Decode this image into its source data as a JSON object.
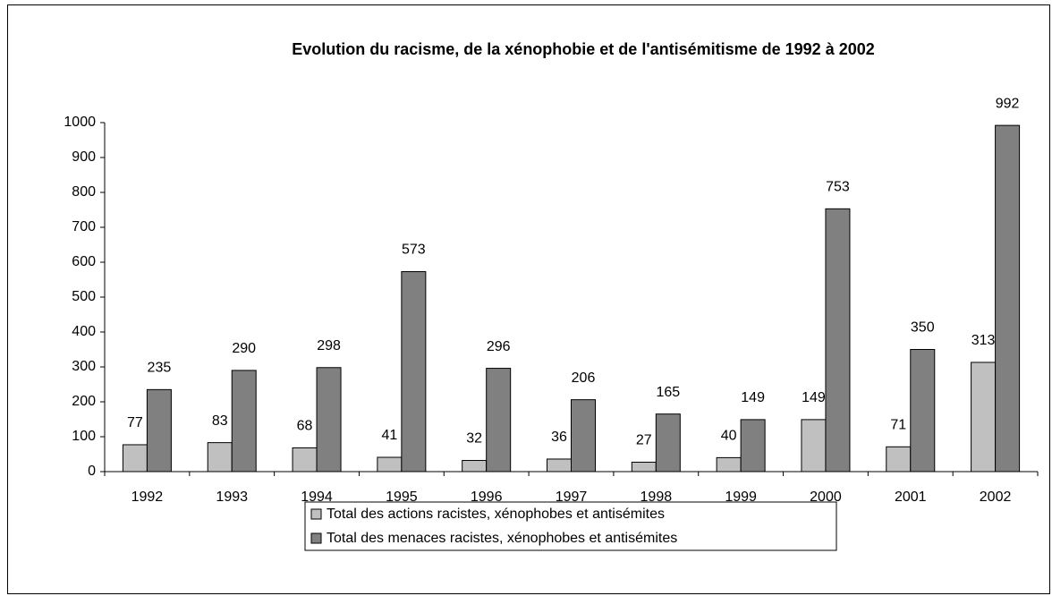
{
  "chart_data": {
    "type": "bar",
    "title": "Evolution du racisme, de la xénophobie et de l'antisémitisme de 1992 à 2002",
    "categories": [
      "1992",
      "1993",
      "1994",
      "1995",
      "1996",
      "1997",
      "1998",
      "1999",
      "2000",
      "2001",
      "2002"
    ],
    "series": [
      {
        "name": "Total des actions racistes, xénophobes et antisémites",
        "color": "#c0c0c0",
        "values": [
          77,
          83,
          68,
          41,
          32,
          36,
          27,
          40,
          149,
          71,
          313
        ]
      },
      {
        "name": "Total des menaces racistes, xénophobes et antisémites",
        "color": "#808080",
        "values": [
          235,
          290,
          298,
          573,
          296,
          206,
          165,
          149,
          753,
          350,
          992
        ]
      }
    ],
    "ylim": [
      0,
      1000
    ],
    "yticks": [
      0,
      100,
      200,
      300,
      400,
      500,
      600,
      700,
      800,
      900,
      1000
    ],
    "grid": false
  }
}
